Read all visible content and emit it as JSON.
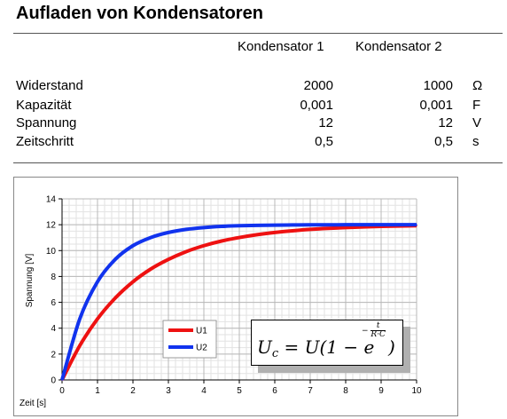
{
  "header": {
    "title": "Aufladen von Kondensatoren"
  },
  "table": {
    "columns": [
      "Kondensator 1",
      "Kondensator 2"
    ],
    "rows": [
      {
        "label": "Widerstand",
        "v1": "2000",
        "v2": "1000",
        "unit": "Ω"
      },
      {
        "label": "Kapazität",
        "v1": "0,001",
        "v2": "0,001",
        "unit": "F"
      },
      {
        "label": "Spannung",
        "v1": "12",
        "v2": "12",
        "unit": "V"
      },
      {
        "label": "Zeitschritt",
        "v1": "0,5",
        "v2": "0,5",
        "unit": "s"
      }
    ]
  },
  "formula": {
    "lhs": "U",
    "lhs_sub": "c",
    "rhs": "= U(1 − e",
    "exp_sign": "−",
    "exp_num": "t",
    "exp_den": "R·C",
    "close": ")"
  },
  "chart_data": {
    "type": "line",
    "xlabel": "Zeit [s]",
    "ylabel": "Spannung [V]",
    "xlim": [
      0,
      10
    ],
    "ylim": [
      0,
      14
    ],
    "xticks": [
      "0",
      "1",
      "2",
      "3",
      "4",
      "5",
      "6",
      "7",
      "8",
      "9",
      "10"
    ],
    "yticks": [
      "0",
      "2",
      "4",
      "6",
      "8",
      "10",
      "12",
      "14"
    ],
    "grid": true,
    "legend_position": "bottom-center",
    "x": [
      0,
      0.5,
      1,
      1.5,
      2,
      2.5,
      3,
      3.5,
      4,
      4.5,
      5,
      5.5,
      6,
      6.5,
      7,
      7.5,
      8,
      8.5,
      9,
      9.5,
      10
    ],
    "series": [
      {
        "name": "U1",
        "color": "#ee1111",
        "values": [
          0,
          2.65,
          4.72,
          6.33,
          7.59,
          8.57,
          9.32,
          9.92,
          10.38,
          10.74,
          11.01,
          11.23,
          11.4,
          11.53,
          11.64,
          11.72,
          11.78,
          11.83,
          11.87,
          11.9,
          11.92
        ]
      },
      {
        "name": "U2",
        "color": "#1133ee",
        "values": [
          0,
          4.72,
          7.59,
          9.32,
          10.38,
          11.01,
          11.4,
          11.64,
          11.78,
          11.87,
          11.92,
          11.95,
          11.97,
          11.98,
          11.99,
          11.99,
          12.0,
          12.0,
          12.0,
          12.0,
          12.0
        ]
      }
    ]
  }
}
